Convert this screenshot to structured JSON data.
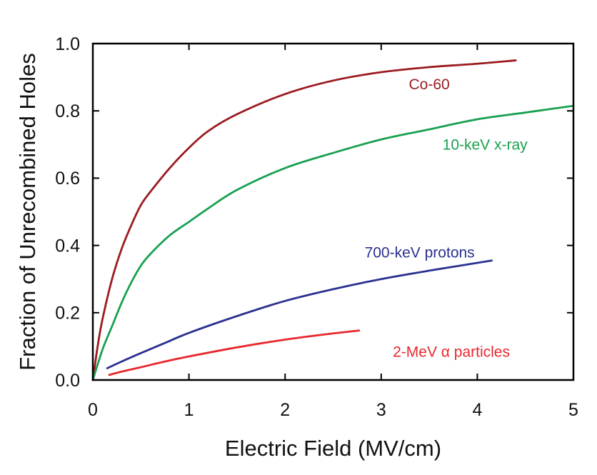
{
  "chart_data": {
    "type": "line",
    "title": "",
    "xlabel": "Electric Field (MV/cm)",
    "ylabel": "Fraction of Unrecombined Holes",
    "xlim": [
      0,
      5
    ],
    "ylim": [
      0,
      1.0
    ],
    "grid": false,
    "legend": "inline labels next to curves",
    "x_ticks": [
      "0",
      "1",
      "2",
      "3",
      "4",
      "5"
    ],
    "y_ticks": [
      "0.0",
      "0.2",
      "0.4",
      "0.6",
      "0.8",
      "1.0"
    ],
    "series": [
      {
        "name": "Co-60",
        "color": "#9b1b1f",
        "label_at": [
          3.5,
          0.88
        ],
        "x": [
          0,
          0.05,
          0.1,
          0.2,
          0.3,
          0.4,
          0.5,
          0.6,
          0.8,
          1.0,
          1.2,
          1.5,
          2.0,
          2.5,
          3.0,
          3.5,
          4.0,
          4.4
        ],
        "y": [
          0,
          0.1,
          0.18,
          0.3,
          0.39,
          0.46,
          0.52,
          0.56,
          0.63,
          0.69,
          0.74,
          0.79,
          0.85,
          0.89,
          0.915,
          0.93,
          0.94,
          0.95
        ]
      },
      {
        "name": "10-keV x-ray",
        "color": "#1aa050",
        "label_at": [
          4.08,
          0.7
        ],
        "x": [
          0,
          0.1,
          0.2,
          0.3,
          0.4,
          0.5,
          0.6,
          0.8,
          1.0,
          1.2,
          1.5,
          2.0,
          2.5,
          3.0,
          3.5,
          4.0,
          4.5,
          5.0
        ],
        "y": [
          0,
          0.09,
          0.16,
          0.23,
          0.29,
          0.34,
          0.375,
          0.43,
          0.47,
          0.51,
          0.565,
          0.63,
          0.675,
          0.715,
          0.745,
          0.775,
          0.795,
          0.815
        ]
      },
      {
        "name": "700-keV protons",
        "color": "#2b3190",
        "label_at": [
          3.4,
          0.38
        ],
        "x": [
          0.15,
          0.3,
          0.5,
          0.75,
          1.0,
          1.5,
          2.0,
          2.5,
          3.0,
          3.5,
          4.15
        ],
        "y": [
          0.035,
          0.055,
          0.08,
          0.11,
          0.14,
          0.19,
          0.235,
          0.27,
          0.3,
          0.325,
          0.355
        ]
      },
      {
        "name": "2-MeV α particles",
        "color": "#e8282e",
        "label_at": [
          3.73,
          0.085
        ],
        "x": [
          0.17,
          0.3,
          0.5,
          0.75,
          1.0,
          1.5,
          2.0,
          2.4,
          2.77
        ],
        "y": [
          0.015,
          0.025,
          0.038,
          0.055,
          0.07,
          0.097,
          0.12,
          0.135,
          0.147
        ]
      }
    ]
  }
}
